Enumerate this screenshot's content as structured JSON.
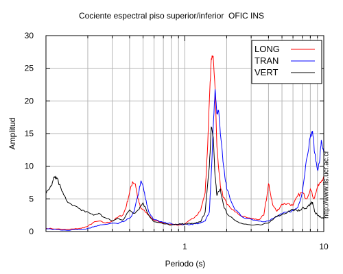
{
  "chart_data": {
    "type": "line",
    "title": "Cociente espectral piso superior/inferior  OFIC INS",
    "xlabel": "Periodo (s)",
    "ylabel": "Amplitud",
    "x_scale": "log",
    "xlim": [
      0.1,
      10
    ],
    "ylim": [
      0,
      30
    ],
    "x_tick_labels": [
      "1",
      "10"
    ],
    "y_ticks": [
      0,
      5,
      10,
      15,
      20,
      25,
      30
    ],
    "grid": true,
    "legend_position": "top-right",
    "annotation": "http://www.lis.ucr.ac.cr",
    "series": [
      {
        "name": "LONG",
        "color": "#ff0000",
        "points": [
          [
            0.1,
            0.5
          ],
          [
            0.12,
            0.4
          ],
          [
            0.14,
            0.3
          ],
          [
            0.16,
            0.4
          ],
          [
            0.18,
            0.5
          ],
          [
            0.2,
            0.8
          ],
          [
            0.22,
            1.4
          ],
          [
            0.24,
            1.6
          ],
          [
            0.27,
            1.3
          ],
          [
            0.3,
            1.6
          ],
          [
            0.33,
            2.2
          ],
          [
            0.36,
            2.6
          ],
          [
            0.38,
            4.0
          ],
          [
            0.4,
            6.0
          ],
          [
            0.42,
            7.6
          ],
          [
            0.44,
            7.3
          ],
          [
            0.46,
            5.0
          ],
          [
            0.48,
            3.6
          ],
          [
            0.5,
            3.3
          ],
          [
            0.55,
            2.5
          ],
          [
            0.6,
            1.7
          ],
          [
            0.7,
            1.3
          ],
          [
            0.8,
            1.1
          ],
          [
            0.9,
            1.0
          ],
          [
            1.0,
            1.1
          ],
          [
            1.1,
            1.8
          ],
          [
            1.2,
            2.4
          ],
          [
            1.3,
            3.3
          ],
          [
            1.4,
            6.0
          ],
          [
            1.45,
            12.0
          ],
          [
            1.5,
            20.0
          ],
          [
            1.55,
            26.5
          ],
          [
            1.6,
            26.8
          ],
          [
            1.65,
            22.0
          ],
          [
            1.7,
            13.0
          ],
          [
            1.8,
            7.0
          ],
          [
            1.9,
            5.2
          ],
          [
            2.0,
            4.2
          ],
          [
            2.3,
            3.0
          ],
          [
            2.6,
            2.3
          ],
          [
            3.0,
            2.0
          ],
          [
            3.4,
            1.8
          ],
          [
            3.7,
            2.5
          ],
          [
            3.9,
            5.5
          ],
          [
            4.0,
            7.3
          ],
          [
            4.1,
            6.2
          ],
          [
            4.3,
            4.0
          ],
          [
            4.6,
            3.1
          ],
          [
            5.0,
            4.2
          ],
          [
            5.5,
            4.3
          ],
          [
            6.0,
            4.0
          ],
          [
            6.5,
            5.5
          ],
          [
            7.0,
            6.0
          ],
          [
            7.5,
            5.0
          ],
          [
            8.0,
            6.5
          ],
          [
            8.5,
            5.0
          ],
          [
            9.0,
            6.8
          ],
          [
            9.5,
            7.5
          ],
          [
            10.0,
            8.5
          ]
        ]
      },
      {
        "name": "TRAN",
        "color": "#0000ff",
        "points": [
          [
            0.1,
            0.4
          ],
          [
            0.12,
            0.3
          ],
          [
            0.14,
            0.2
          ],
          [
            0.16,
            0.3
          ],
          [
            0.18,
            0.3
          ],
          [
            0.2,
            0.5
          ],
          [
            0.22,
            0.7
          ],
          [
            0.24,
            0.9
          ],
          [
            0.27,
            1.1
          ],
          [
            0.3,
            1.3
          ],
          [
            0.33,
            1.2
          ],
          [
            0.36,
            1.5
          ],
          [
            0.4,
            2.0
          ],
          [
            0.43,
            3.0
          ],
          [
            0.46,
            5.5
          ],
          [
            0.48,
            7.6
          ],
          [
            0.5,
            7.0
          ],
          [
            0.52,
            5.0
          ],
          [
            0.55,
            3.0
          ],
          [
            0.6,
            1.8
          ],
          [
            0.7,
            1.4
          ],
          [
            0.8,
            1.2
          ],
          [
            0.9,
            1.1
          ],
          [
            1.0,
            1.1
          ],
          [
            1.1,
            1.1
          ],
          [
            1.2,
            1.2
          ],
          [
            1.3,
            1.3
          ],
          [
            1.4,
            1.6
          ],
          [
            1.5,
            3.0
          ],
          [
            1.55,
            9.0
          ],
          [
            1.6,
            16.0
          ],
          [
            1.65,
            21.8
          ],
          [
            1.7,
            18.0
          ],
          [
            1.75,
            18.5
          ],
          [
            1.8,
            15.0
          ],
          [
            1.9,
            10.0
          ],
          [
            2.0,
            6.5
          ],
          [
            2.3,
            3.3
          ],
          [
            2.6,
            2.2
          ],
          [
            3.0,
            1.9
          ],
          [
            3.5,
            1.6
          ],
          [
            4.0,
            1.6
          ],
          [
            4.5,
            2.2
          ],
          [
            5.0,
            2.7
          ],
          [
            5.5,
            3.0
          ],
          [
            6.0,
            3.2
          ],
          [
            6.5,
            3.7
          ],
          [
            7.0,
            6.0
          ],
          [
            7.5,
            11.0
          ],
          [
            8.0,
            14.5
          ],
          [
            8.3,
            15.4
          ],
          [
            8.6,
            12.0
          ],
          [
            9.0,
            9.5
          ],
          [
            9.3,
            10.5
          ],
          [
            9.6,
            14.0
          ],
          [
            10.0,
            12.0
          ]
        ]
      },
      {
        "name": "VERT",
        "color": "#000000",
        "points": [
          [
            0.1,
            5.8
          ],
          [
            0.11,
            7.0
          ],
          [
            0.115,
            8.3
          ],
          [
            0.12,
            8.2
          ],
          [
            0.13,
            6.2
          ],
          [
            0.14,
            4.8
          ],
          [
            0.16,
            4.0
          ],
          [
            0.18,
            3.2
          ],
          [
            0.2,
            3.0
          ],
          [
            0.22,
            2.5
          ],
          [
            0.24,
            2.8
          ],
          [
            0.26,
            2.2
          ],
          [
            0.3,
            1.6
          ],
          [
            0.33,
            2.0
          ],
          [
            0.36,
            1.8
          ],
          [
            0.4,
            3.3
          ],
          [
            0.43,
            2.8
          ],
          [
            0.46,
            3.3
          ],
          [
            0.5,
            4.4
          ],
          [
            0.55,
            2.5
          ],
          [
            0.6,
            1.5
          ],
          [
            0.7,
            1.2
          ],
          [
            0.8,
            1.0
          ],
          [
            0.9,
            1.1
          ],
          [
            1.0,
            1.2
          ],
          [
            1.1,
            1.2
          ],
          [
            1.2,
            1.3
          ],
          [
            1.3,
            1.5
          ],
          [
            1.4,
            3.0
          ],
          [
            1.5,
            10.0
          ],
          [
            1.55,
            16.0
          ],
          [
            1.6,
            14.5
          ],
          [
            1.65,
            8.5
          ],
          [
            1.7,
            5.5
          ],
          [
            1.8,
            6.5
          ],
          [
            1.9,
            4.0
          ],
          [
            2.0,
            2.8
          ],
          [
            2.3,
            1.7
          ],
          [
            2.6,
            1.2
          ],
          [
            3.0,
            1.0
          ],
          [
            3.5,
            1.0
          ],
          [
            4.0,
            1.3
          ],
          [
            4.5,
            2.3
          ],
          [
            5.0,
            2.6
          ],
          [
            5.5,
            3.0
          ],
          [
            6.0,
            3.4
          ],
          [
            6.5,
            3.1
          ],
          [
            7.0,
            3.6
          ],
          [
            7.5,
            3.5
          ],
          [
            8.0,
            4.3
          ],
          [
            8.3,
            4.5
          ],
          [
            8.6,
            3.0
          ],
          [
            9.0,
            2.5
          ],
          [
            9.5,
            2.2
          ],
          [
            10.0,
            2.0
          ]
        ]
      }
    ]
  }
}
